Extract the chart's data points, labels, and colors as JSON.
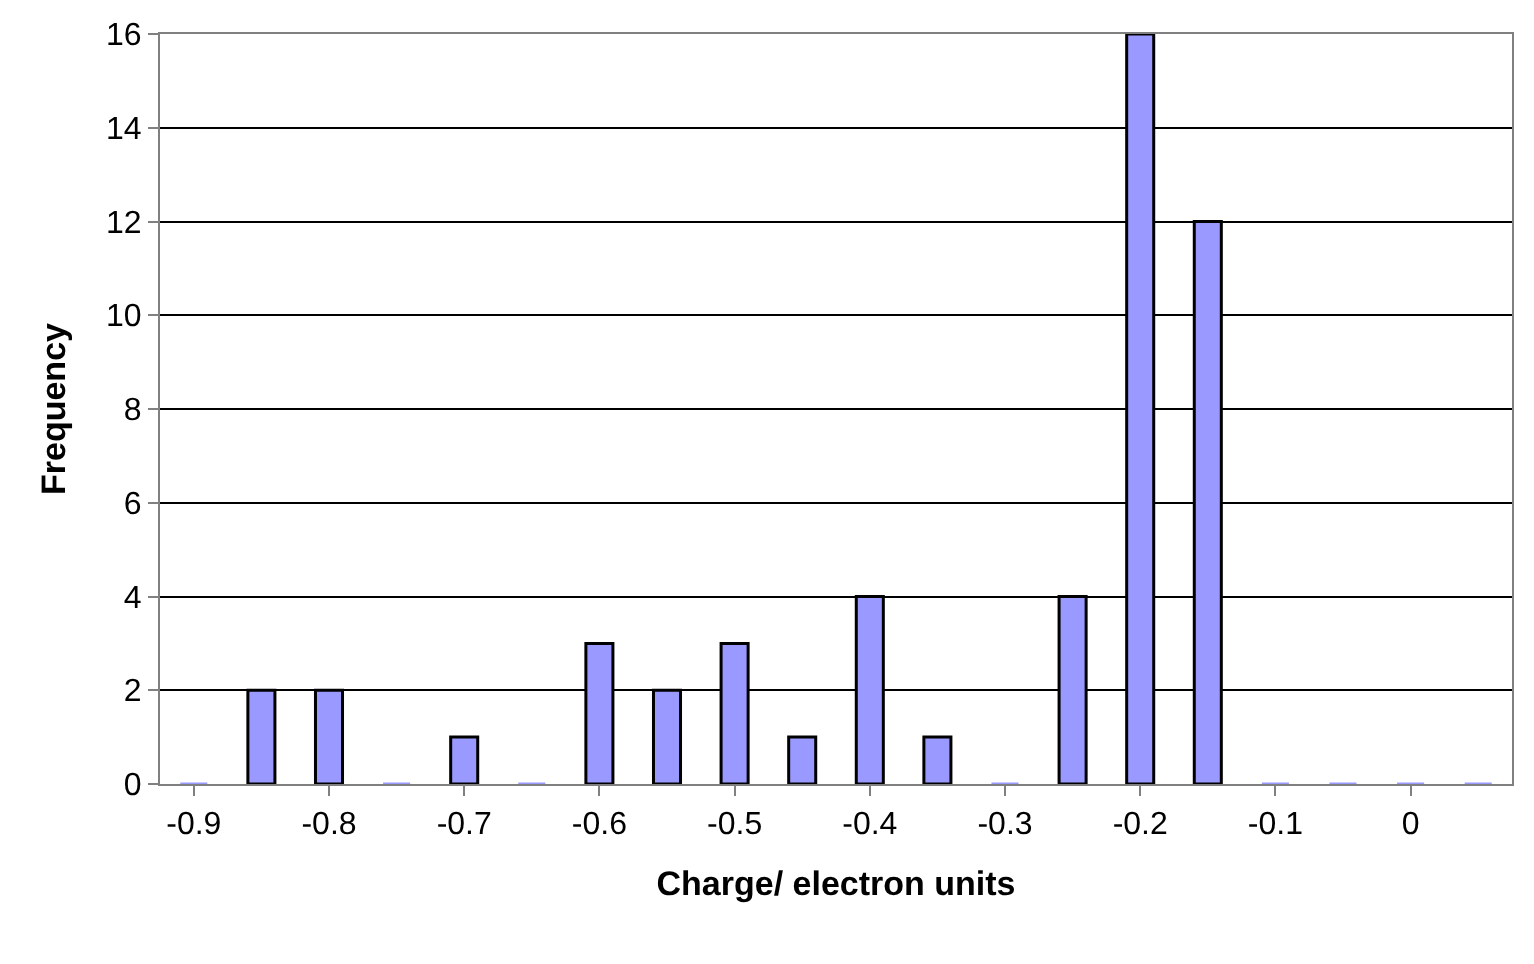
{
  "chart_data": {
    "type": "bar",
    "xlabel": "Charge/ electron units",
    "ylabel": "Frequency",
    "categories": [
      "-0.9",
      null,
      "-0.8",
      null,
      "-0.7",
      null,
      "-0.6",
      null,
      "-0.5",
      null,
      "-0.4",
      null,
      "-0.3",
      null,
      "-0.2",
      null,
      "-0.1",
      null,
      "0",
      null
    ],
    "values": [
      0,
      2,
      2,
      0,
      1,
      0,
      3,
      2,
      3,
      1,
      4,
      1,
      0,
      4,
      16,
      12,
      0,
      0,
      0,
      0
    ],
    "color": "#9999ff",
    "ylim": [
      0,
      16
    ],
    "yticks": [
      0,
      2,
      4,
      6,
      8,
      10,
      12,
      14,
      16
    ],
    "grid": "y"
  }
}
